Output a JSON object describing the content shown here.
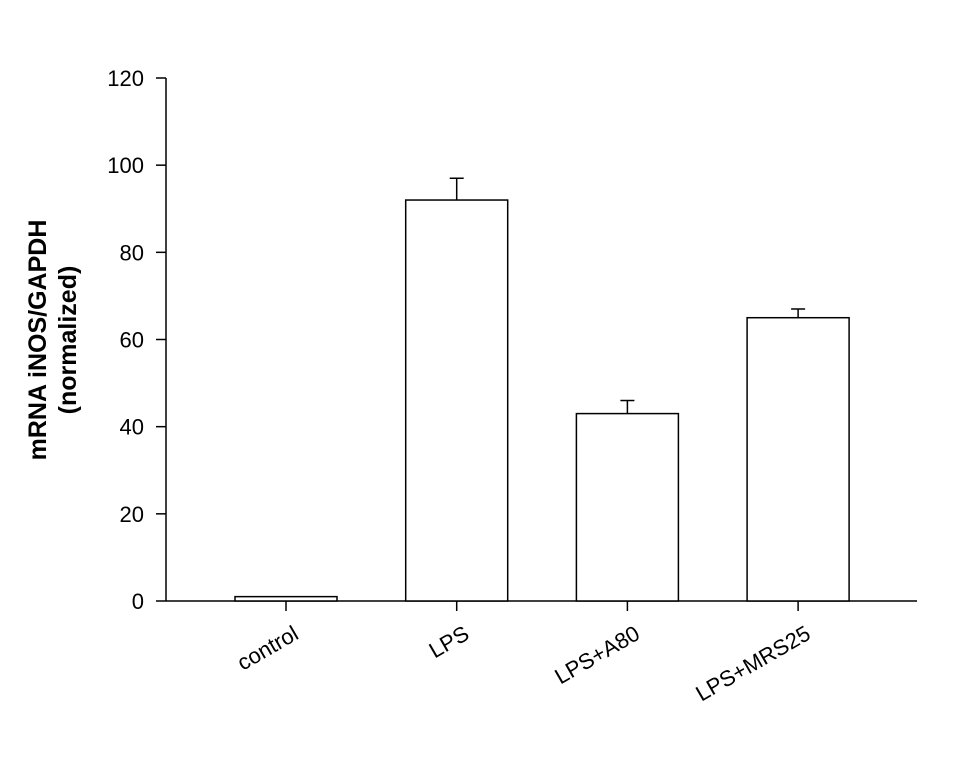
{
  "chart_data": {
    "type": "bar",
    "ylabel": [
      "mRNA iNOS/GAPDH",
      "(normalized)"
    ],
    "categories": [
      "control",
      "LPS",
      "LPS+A80",
      "LPS+MRS25"
    ],
    "values": [
      1,
      92,
      43,
      65
    ],
    "errors": [
      null,
      5,
      3,
      2
    ],
    "color": "#ffffff",
    "ylim": [
      0,
      120
    ],
    "yticks": [
      0,
      20,
      40,
      60,
      80,
      100,
      120
    ]
  }
}
